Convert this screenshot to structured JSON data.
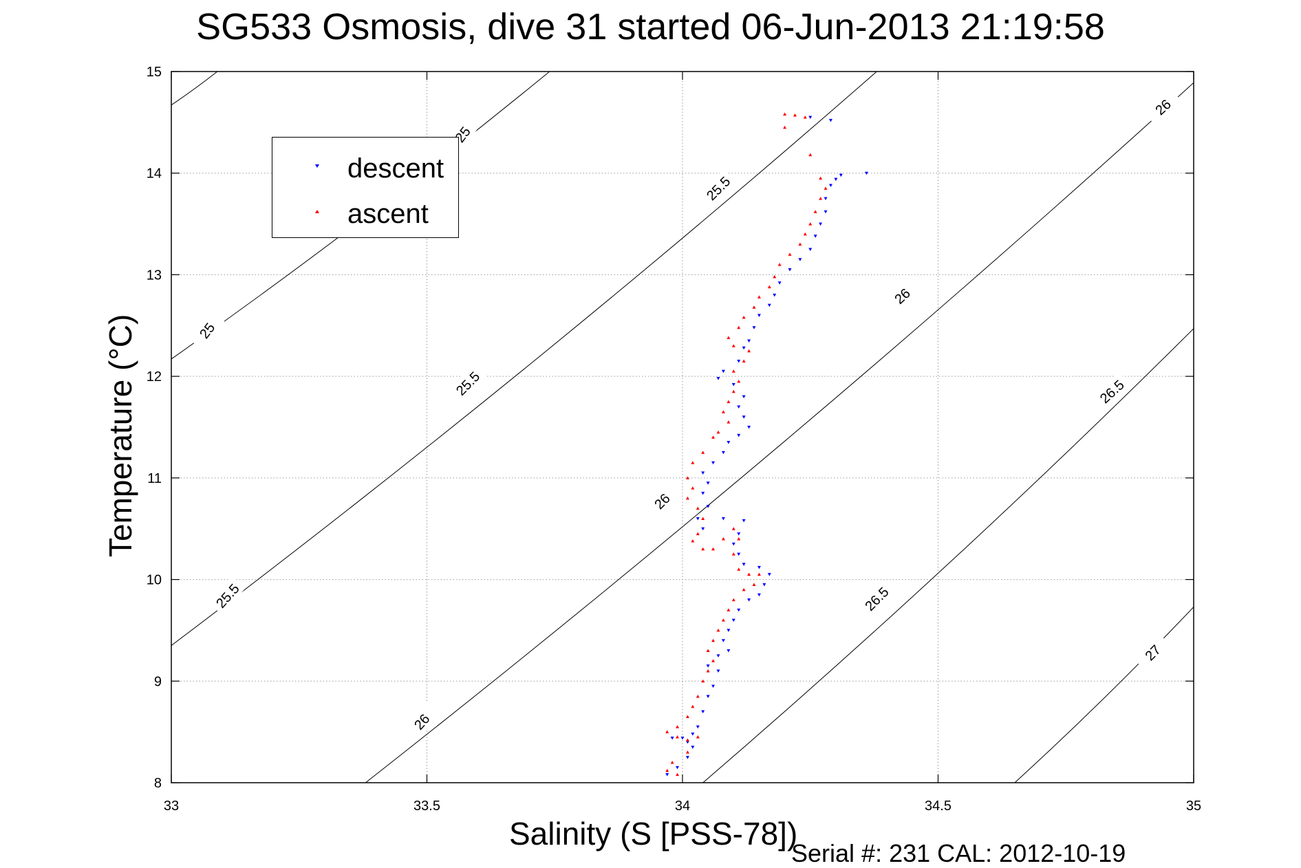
{
  "title": "SG533 Osmosis, dive 31 started 06-Jun-2013 21:19:58",
  "footer": "Serial #: 231  CAL: 2012-10-19",
  "chart_data": {
    "type": "scatter",
    "title": "SG533 Osmosis, dive 31 started 06-Jun-2013 21:19:58",
    "xlabel": "Salinity (S [PSS-78])",
    "ylabel": "Temperature (°C)",
    "xlim": [
      33,
      35
    ],
    "ylim": [
      8,
      15
    ],
    "xticks": [
      "33",
      "33.5",
      "34",
      "34.5",
      "35"
    ],
    "yticks": [
      "8",
      "9",
      "10",
      "11",
      "12",
      "13",
      "14",
      "15"
    ],
    "grid": true,
    "legend_position": "top-left",
    "series": [
      {
        "name": "descent",
        "color": "#0000ff",
        "marker": "triangle-down",
        "points": [
          [
            34.25,
            14.55
          ],
          [
            34.29,
            14.52
          ],
          [
            34.36,
            14.0
          ],
          [
            34.31,
            13.98
          ],
          [
            34.3,
            13.94
          ],
          [
            34.29,
            13.88
          ],
          [
            34.28,
            13.75
          ],
          [
            34.28,
            13.62
          ],
          [
            34.27,
            13.5
          ],
          [
            34.26,
            13.38
          ],
          [
            34.25,
            13.25
          ],
          [
            34.23,
            13.15
          ],
          [
            34.21,
            13.05
          ],
          [
            34.19,
            12.92
          ],
          [
            34.18,
            12.8
          ],
          [
            34.17,
            12.7
          ],
          [
            34.15,
            12.6
          ],
          [
            34.14,
            12.48
          ],
          [
            34.13,
            12.35
          ],
          [
            34.12,
            12.28
          ],
          [
            34.11,
            12.15
          ],
          [
            34.08,
            12.05
          ],
          [
            34.07,
            11.98
          ],
          [
            34.1,
            11.92
          ],
          [
            34.12,
            11.8
          ],
          [
            34.11,
            11.7
          ],
          [
            34.12,
            11.6
          ],
          [
            34.13,
            11.5
          ],
          [
            34.11,
            11.42
          ],
          [
            34.09,
            11.35
          ],
          [
            34.08,
            11.25
          ],
          [
            34.06,
            11.15
          ],
          [
            34.04,
            11.05
          ],
          [
            34.05,
            10.95
          ],
          [
            34.04,
            10.85
          ],
          [
            34.05,
            10.72
          ],
          [
            34.03,
            10.6
          ],
          [
            34.04,
            10.5
          ],
          [
            34.08,
            10.6
          ],
          [
            34.12,
            10.58
          ],
          [
            34.11,
            10.45
          ],
          [
            34.1,
            10.35
          ],
          [
            34.11,
            10.25
          ],
          [
            34.12,
            10.15
          ],
          [
            34.15,
            10.12
          ],
          [
            34.17,
            10.05
          ],
          [
            34.16,
            9.95
          ],
          [
            34.15,
            9.85
          ],
          [
            34.13,
            9.8
          ],
          [
            34.11,
            9.7
          ],
          [
            34.1,
            9.6
          ],
          [
            34.09,
            9.5
          ],
          [
            34.08,
            9.4
          ],
          [
            34.09,
            9.3
          ],
          [
            34.07,
            9.25
          ],
          [
            34.05,
            9.15
          ],
          [
            34.07,
            9.1
          ],
          [
            34.06,
            8.95
          ],
          [
            34.05,
            8.85
          ],
          [
            34.04,
            8.7
          ],
          [
            34.03,
            8.55
          ],
          [
            34.02,
            8.48
          ],
          [
            34.0,
            8.44
          ],
          [
            33.98,
            8.44
          ],
          [
            34.01,
            8.4
          ],
          [
            34.02,
            8.35
          ],
          [
            34.01,
            8.25
          ],
          [
            33.99,
            8.15
          ],
          [
            33.97,
            8.08
          ]
        ]
      },
      {
        "name": "ascent",
        "color": "#ff0000",
        "marker": "triangle-up",
        "points": [
          [
            34.2,
            14.58
          ],
          [
            34.22,
            14.57
          ],
          [
            34.24,
            14.55
          ],
          [
            34.2,
            14.45
          ],
          [
            34.25,
            14.18
          ],
          [
            34.27,
            13.95
          ],
          [
            34.28,
            13.85
          ],
          [
            34.27,
            13.75
          ],
          [
            34.26,
            13.62
          ],
          [
            34.25,
            13.5
          ],
          [
            34.24,
            13.4
          ],
          [
            34.23,
            13.3
          ],
          [
            34.21,
            13.2
          ],
          [
            34.19,
            13.1
          ],
          [
            34.18,
            12.98
          ],
          [
            34.17,
            12.88
          ],
          [
            34.15,
            12.78
          ],
          [
            34.14,
            12.68
          ],
          [
            34.12,
            12.58
          ],
          [
            34.11,
            12.48
          ],
          [
            34.09,
            12.38
          ],
          [
            34.1,
            12.3
          ],
          [
            34.13,
            12.25
          ],
          [
            34.12,
            12.15
          ],
          [
            34.1,
            12.05
          ],
          [
            34.11,
            11.95
          ],
          [
            34.1,
            11.85
          ],
          [
            34.09,
            11.75
          ],
          [
            34.08,
            11.65
          ],
          [
            34.09,
            11.55
          ],
          [
            34.07,
            11.45
          ],
          [
            34.06,
            11.4
          ],
          [
            34.04,
            11.25
          ],
          [
            34.02,
            11.15
          ],
          [
            34.01,
            11.0
          ],
          [
            34.02,
            10.9
          ],
          [
            34.01,
            10.8
          ],
          [
            34.03,
            10.7
          ],
          [
            34.04,
            10.6
          ],
          [
            34.03,
            10.45
          ],
          [
            34.02,
            10.38
          ],
          [
            34.04,
            10.3
          ],
          [
            34.06,
            10.3
          ],
          [
            34.08,
            10.4
          ],
          [
            34.1,
            10.5
          ],
          [
            34.11,
            10.4
          ],
          [
            34.1,
            10.25
          ],
          [
            34.11,
            10.1
          ],
          [
            34.13,
            10.05
          ],
          [
            34.15,
            10.05
          ],
          [
            34.14,
            9.95
          ],
          [
            34.12,
            9.9
          ],
          [
            34.1,
            9.8
          ],
          [
            34.09,
            9.7
          ],
          [
            34.08,
            9.6
          ],
          [
            34.07,
            9.5
          ],
          [
            34.06,
            9.4
          ],
          [
            34.05,
            9.3
          ],
          [
            34.06,
            9.2
          ],
          [
            34.05,
            9.1
          ],
          [
            34.04,
            9.0
          ],
          [
            34.03,
            8.85
          ],
          [
            34.02,
            8.75
          ],
          [
            34.01,
            8.65
          ],
          [
            33.99,
            8.55
          ],
          [
            33.97,
            8.5
          ],
          [
            33.99,
            8.45
          ],
          [
            34.01,
            8.42
          ],
          [
            34.03,
            8.45
          ],
          [
            34.01,
            8.3
          ],
          [
            33.98,
            8.2
          ],
          [
            33.97,
            8.12
          ],
          [
            33.99,
            8.08
          ]
        ]
      }
    ],
    "density_contours": [
      {
        "level": "25",
        "labels": [
          "25",
          "25"
        ]
      },
      {
        "level": "25.5",
        "labels": [
          "25.5",
          "25.5",
          "25.5"
        ]
      },
      {
        "level": "26",
        "labels": [
          "26",
          "26",
          "26",
          "26"
        ]
      },
      {
        "level": "26.5",
        "labels": [
          "26.5",
          "26.5"
        ]
      },
      {
        "level": "27",
        "labels": [
          "27"
        ]
      }
    ]
  }
}
